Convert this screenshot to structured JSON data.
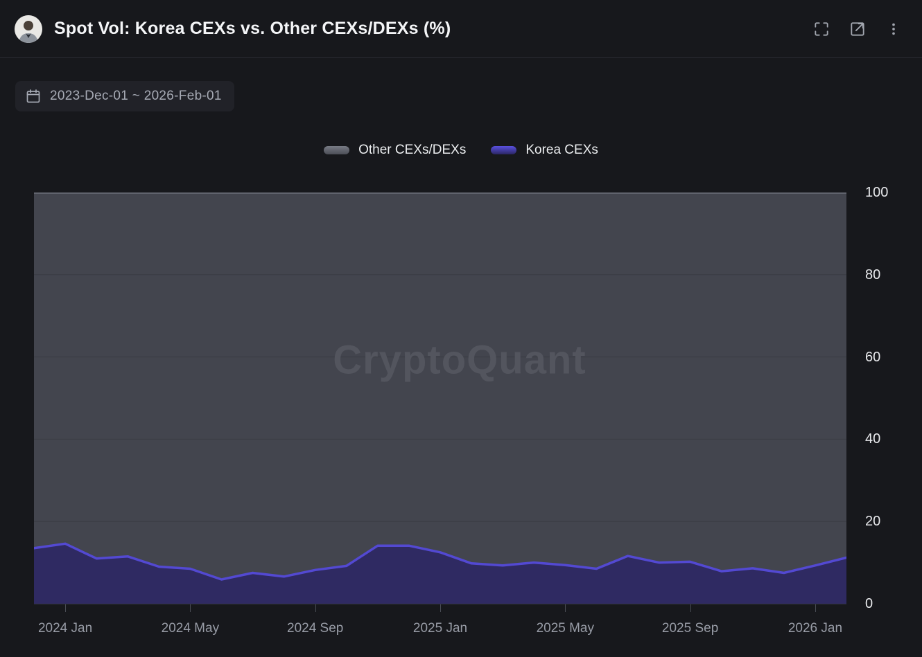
{
  "header": {
    "title": "Spot Vol: Korea CEXs vs. Other CEXs/DEXs (%)",
    "actions": {
      "fullscreen": "fullscreen",
      "open_external": "open in new window",
      "more": "more options"
    }
  },
  "date_range": {
    "label": "2023-Dec-01 ~ 2026-Feb-01"
  },
  "legend": [
    {
      "label": "Other CEXs/DEXs",
      "color": "#6b6e78"
    },
    {
      "label": "Korea CEXs",
      "color": "#4a42cc"
    }
  ],
  "watermark": "CryptoQuant",
  "colors": {
    "background": "#17181c",
    "other_fill": "#43454e",
    "other_line": "#60636d",
    "korea_fill": "#2f2a62",
    "korea_line": "#5349d2",
    "gridline": "#3a3c44",
    "axis_text": "#989ca6",
    "y_axis_text": "#e8e9ec"
  },
  "chart_data": {
    "type": "area",
    "stacked": true,
    "stack_total": 100,
    "title": "Spot Vol: Korea CEXs vs. Other CEXs/DEXs (%)",
    "xlabel": "",
    "ylabel": "",
    "ylim": [
      0,
      100
    ],
    "grid": true,
    "legend_position": "top",
    "x": [
      "Dec 2023",
      "Jan 2024",
      "Feb 2024",
      "Mar 2024",
      "Apr 2024",
      "May 2024",
      "Jun 2024",
      "Jul 2024",
      "Aug 2024",
      "Sep 2024",
      "Oct 2024",
      "Nov 2024",
      "Dec 2024",
      "Jan 2025",
      "Feb 2025",
      "Mar 2025",
      "Apr 2025",
      "May 2025",
      "Jun 2025",
      "Jul 2025",
      "Aug 2025",
      "Sep 2025",
      "Oct 2025",
      "Nov 2025",
      "Dec 2025",
      "Jan 2026",
      "Feb 2026"
    ],
    "series": [
      {
        "name": "Other CEXs/DEXs",
        "values": [
          86.5,
          85.4,
          89.0,
          88.5,
          91.0,
          91.5,
          94.1,
          92.5,
          93.4,
          91.8,
          90.8,
          85.9,
          85.9,
          87.5,
          90.2,
          90.7,
          90.0,
          90.6,
          91.5,
          88.4,
          90.0,
          89.8,
          92.1,
          91.4,
          92.5,
          90.7,
          88.8
        ]
      },
      {
        "name": "Korea CEXs",
        "values": [
          13.5,
          14.6,
          11.0,
          11.5,
          9.0,
          8.5,
          5.9,
          7.5,
          6.6,
          8.2,
          9.2,
          14.1,
          14.1,
          12.5,
          9.8,
          9.3,
          10.0,
          9.4,
          8.5,
          11.6,
          10.0,
          10.2,
          7.9,
          8.6,
          7.5,
          9.3,
          11.2
        ]
      }
    ],
    "y_ticks": [
      0,
      20,
      40,
      60,
      80,
      100
    ],
    "x_ticks": [
      {
        "index": 1,
        "label": "2024 Jan"
      },
      {
        "index": 5,
        "label": "2024 May"
      },
      {
        "index": 9,
        "label": "2024 Sep"
      },
      {
        "index": 13,
        "label": "2025 Jan"
      },
      {
        "index": 17,
        "label": "2025 May"
      },
      {
        "index": 21,
        "label": "2025 Sep"
      },
      {
        "index": 25,
        "label": "2026 Jan"
      }
    ]
  }
}
